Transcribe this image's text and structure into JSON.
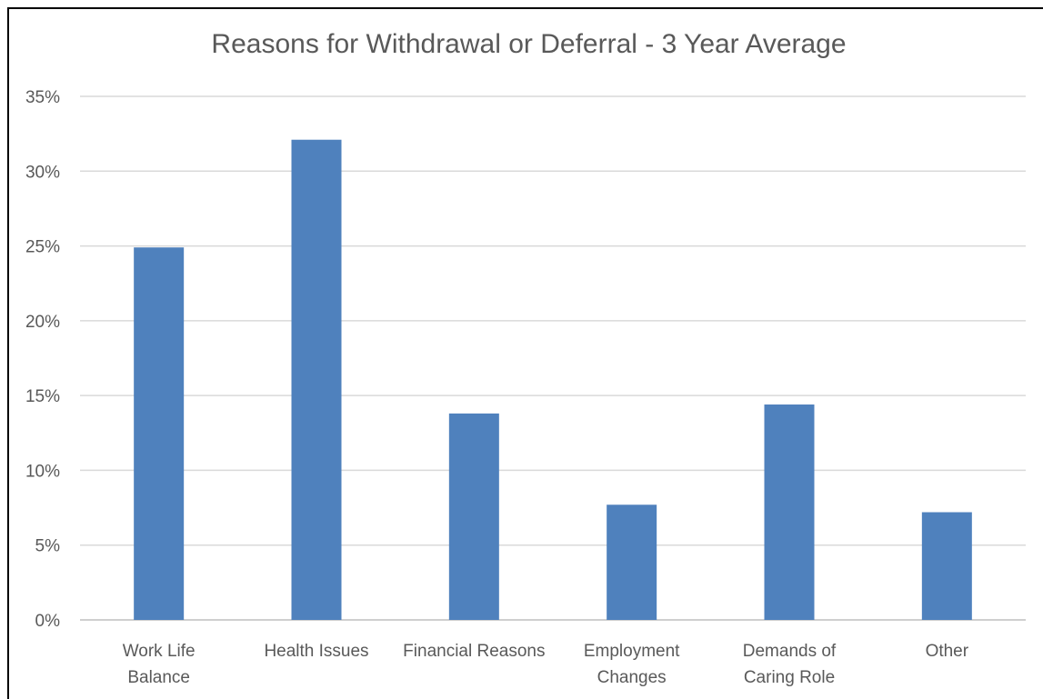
{
  "chart_data": {
    "type": "bar",
    "title": "Reasons for Withdrawal or Deferral - 3 Year Average",
    "categories": [
      [
        "Work Life",
        "Balance"
      ],
      [
        "Health Issues"
      ],
      [
        "Financial Reasons"
      ],
      [
        "Employment",
        "Changes"
      ],
      [
        "Demands of",
        "Caring Role"
      ],
      [
        "Other"
      ]
    ],
    "values": [
      24.9,
      32.1,
      13.8,
      7.7,
      14.4,
      7.2
    ],
    "ylim": [
      0,
      35
    ],
    "yticks": [
      "0%",
      "5%",
      "10%",
      "15%",
      "20%",
      "25%",
      "30%",
      "35%"
    ],
    "bar_color": "#4f81bd",
    "grid": true,
    "xlabel": "",
    "ylabel": ""
  }
}
